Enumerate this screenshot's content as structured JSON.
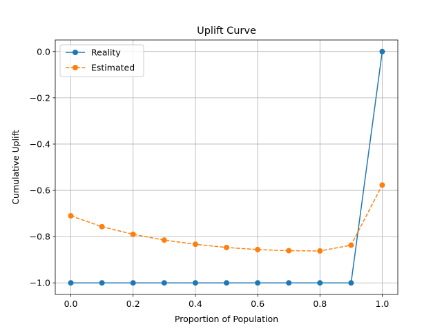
{
  "chart_data": {
    "type": "line",
    "title": "Uplift Curve",
    "xlabel": "Proportion of Population",
    "ylabel": "Cumulative Uplift",
    "xlim": [
      -0.05,
      1.05
    ],
    "ylim": [
      -1.05,
      0.05
    ],
    "x": [
      0.0,
      0.1,
      0.2,
      0.3,
      0.4,
      0.5,
      0.6,
      0.7,
      0.8,
      0.9,
      1.0
    ],
    "xticks": [
      0.0,
      0.2,
      0.4,
      0.6,
      0.8,
      1.0
    ],
    "xtick_labels": [
      "0.0",
      "0.2",
      "0.4",
      "0.6",
      "0.8",
      "1.0"
    ],
    "yticks": [
      0.0,
      -0.2,
      -0.4,
      -0.6,
      -0.8,
      -1.0
    ],
    "ytick_labels": [
      "0.0",
      "−0.2",
      "−0.4",
      "−0.6",
      "−0.8",
      "−1.0"
    ],
    "grid": true,
    "legend_position": "top-left",
    "series": [
      {
        "name": "Reality",
        "color": "#1f77b4",
        "linestyle": "solid",
        "marker": "circle",
        "values": [
          -1.0,
          -1.0,
          -1.0,
          -1.0,
          -1.0,
          -1.0,
          -1.0,
          -1.0,
          -1.0,
          -1.0,
          0.0
        ]
      },
      {
        "name": "Estimated",
        "color": "#ff7f0e",
        "linestyle": "dashed",
        "marker": "circle",
        "values": [
          -0.71,
          -0.757,
          -0.79,
          -0.815,
          -0.833,
          -0.847,
          -0.856,
          -0.861,
          -0.862,
          -0.837,
          -0.577
        ]
      }
    ]
  }
}
